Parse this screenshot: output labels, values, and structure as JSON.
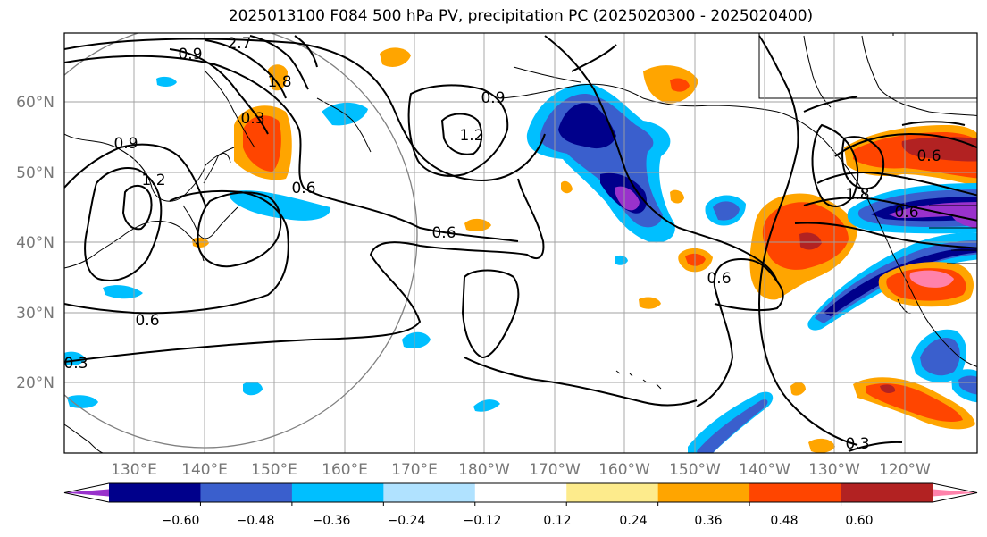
{
  "title": "2025013100 F084 500 hPa PV, precipitation PC (2025020300 - 2025020400)",
  "map": {
    "lat_labels": [
      "60°N",
      "50°N",
      "40°N",
      "30°N",
      "20°N"
    ],
    "lon_labels": [
      "130°E",
      "140°E",
      "150°E",
      "160°E",
      "170°E",
      "180°W",
      "170°W",
      "160°W",
      "150°W",
      "140°W",
      "130°W",
      "120°W"
    ],
    "contour_labels": [
      "0.9",
      "2.7",
      "1.8",
      "0.3",
      "0.9",
      "1.2",
      "0.6",
      "0.6",
      "0.9",
      "1.2",
      "0.6",
      "0.6",
      "1.8",
      "0.6",
      "0.6",
      "0.3",
      "0.3"
    ]
  },
  "colorbar": {
    "tick_labels": [
      "−0.60",
      "−0.48",
      "−0.36",
      "−0.24",
      "−0.12",
      "0.12",
      "0.24",
      "0.36",
      "0.48",
      "0.60"
    ],
    "colors": [
      "#9932cc",
      "#00008b",
      "#3a5fcd",
      "#00bfff",
      "#b0e2ff",
      "#ffffff",
      "#fdeb8c",
      "#ffa500",
      "#ff4500",
      "#b22222",
      "#ff82ab"
    ]
  }
}
